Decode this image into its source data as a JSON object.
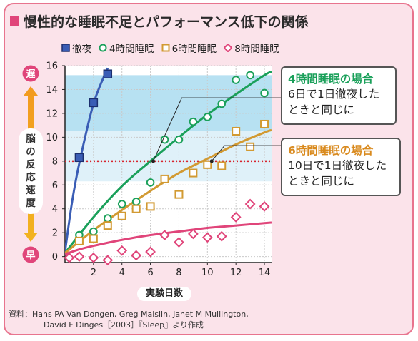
{
  "title": "慢性的な睡眠不足とパフォーマンス低下の関係",
  "legend": [
    {
      "label": "徹夜",
      "marker": "square-filled",
      "color": "#3a5db5"
    },
    {
      "label": "4時間睡眠",
      "marker": "circle",
      "color": "#1aa05a"
    },
    {
      "label": "6時間睡眠",
      "marker": "square",
      "color": "#d29a32"
    },
    {
      "label": "8時間睡眠",
      "marker": "diamond",
      "color": "#e0457a"
    }
  ],
  "y_axis": {
    "label_chars": [
      "脳",
      "の",
      "反",
      "応",
      "速",
      "度"
    ],
    "top": "遅",
    "bottom": "早"
  },
  "x_axis_label": "実験日数",
  "callouts": {
    "four_hour": {
      "heading": "4時間睡眠の場合",
      "line1": "6日で1日徹夜した",
      "line2": "ときと同じに"
    },
    "six_hour": {
      "heading": "6時間睡眠の場合",
      "line1": "10日で1日徹夜した",
      "line2": "ときと同じに"
    }
  },
  "source": {
    "line1": "資料：Hans PA Van Dongen, Greg Maislin, Janet M Mullington,",
    "line2": "David F Dinges［2003］『Sleep』より作成"
  },
  "colors": {
    "bg": "#fbe3ea",
    "border": "#e8748e",
    "band_dark": "#b7e1f2",
    "band_light": "#dff1f9",
    "reference_line": "#d9242e",
    "arrow_top": "#f29b1f"
  },
  "chart_data": {
    "type": "scatter",
    "xlim": [
      0,
      14.5
    ],
    "ylim": [
      -0.5,
      16
    ],
    "x_ticks": [
      2,
      4,
      6,
      8,
      10,
      12,
      14
    ],
    "y_ticks": [
      0,
      2,
      4,
      6,
      8,
      10,
      12,
      14,
      16
    ],
    "reference_y": 8,
    "bands": [
      {
        "from": 10.5,
        "to": 15.2,
        "shade": "dark"
      },
      {
        "from": 6.3,
        "to": 10.5,
        "shade": "light"
      }
    ],
    "series": [
      {
        "name": "徹夜",
        "marker": "square-filled",
        "color": "#3a5db5",
        "x": [
          1,
          2,
          3
        ],
        "y": [
          8.3,
          12.9,
          15.3
        ],
        "fit": {
          "from": 0,
          "to": 3.2,
          "a": 0.4,
          "b": 0.0,
          "c": 0.0,
          "p": 0.6,
          "k": 7.7,
          "curve": [
            [
              0,
              0.4
            ],
            [
              0.5,
              4.6
            ],
            [
              1,
              7.8
            ],
            [
              2,
              12.8
            ],
            [
              3,
              15.8
            ]
          ]
        }
      },
      {
        "name": "4時間睡眠",
        "marker": "circle",
        "color": "#1aa05a",
        "x": [
          1,
          2,
          3,
          4,
          5,
          6,
          7,
          8,
          9,
          10,
          11,
          12,
          13,
          14
        ],
        "y": [
          1.8,
          2.1,
          3.2,
          4.4,
          4.6,
          6.2,
          9.8,
          9.8,
          11.3,
          11.7,
          12.8,
          14.8,
          15.2,
          13.7
        ],
        "fit": {
          "from": 0,
          "to": 14.5,
          "curve": [
            [
              0,
              0.3
            ],
            [
              2,
              3.3
            ],
            [
              4,
              5.9
            ],
            [
              6,
              8.0
            ],
            [
              8,
              10.0
            ],
            [
              10,
              11.9
            ],
            [
              12,
              13.6
            ],
            [
              14,
              15.2
            ],
            [
              14.5,
              15.5
            ]
          ]
        }
      },
      {
        "name": "6時間睡眠",
        "marker": "square",
        "color": "#d29a32",
        "x": [
          1,
          2,
          3,
          4,
          5,
          6,
          7,
          8,
          9,
          10,
          11,
          12,
          13,
          14
        ],
        "y": [
          1.3,
          1.5,
          2.6,
          3.4,
          4.0,
          4.2,
          6.5,
          5.2,
          7.0,
          7.7,
          7.6,
          10.5,
          9.2,
          11.1
        ],
        "fit": {
          "from": 0,
          "to": 14.5,
          "curve": [
            [
              0,
              0.3
            ],
            [
              2,
              2.2
            ],
            [
              4,
              3.9
            ],
            [
              6,
              5.5
            ],
            [
              8,
              7.0
            ],
            [
              10,
              8.2
            ],
            [
              12,
              9.4
            ],
            [
              14,
              10.4
            ],
            [
              14.5,
              10.6
            ]
          ]
        }
      },
      {
        "name": "8時間睡眠",
        "marker": "diamond",
        "color": "#e0457a",
        "x": [
          0.3,
          1,
          2,
          3,
          4,
          5,
          6,
          7,
          8,
          9,
          10,
          11,
          12,
          13,
          14
        ],
        "y": [
          -0.1,
          0.0,
          -0.1,
          -0.3,
          0.5,
          0.1,
          0.4,
          1.8,
          1.2,
          1.9,
          1.6,
          1.7,
          3.3,
          4.4,
          4.2
        ],
        "fit": {
          "from": 0,
          "to": 14.5,
          "curve": [
            [
              0,
              0.2
            ],
            [
              1,
              0.6
            ],
            [
              2,
              0.9
            ],
            [
              4,
              1.4
            ],
            [
              6,
              1.8
            ],
            [
              8,
              2.1
            ],
            [
              10,
              2.4
            ],
            [
              12,
              2.6
            ],
            [
              14,
              2.8
            ],
            [
              14.5,
              2.85
            ]
          ]
        }
      }
    ]
  }
}
